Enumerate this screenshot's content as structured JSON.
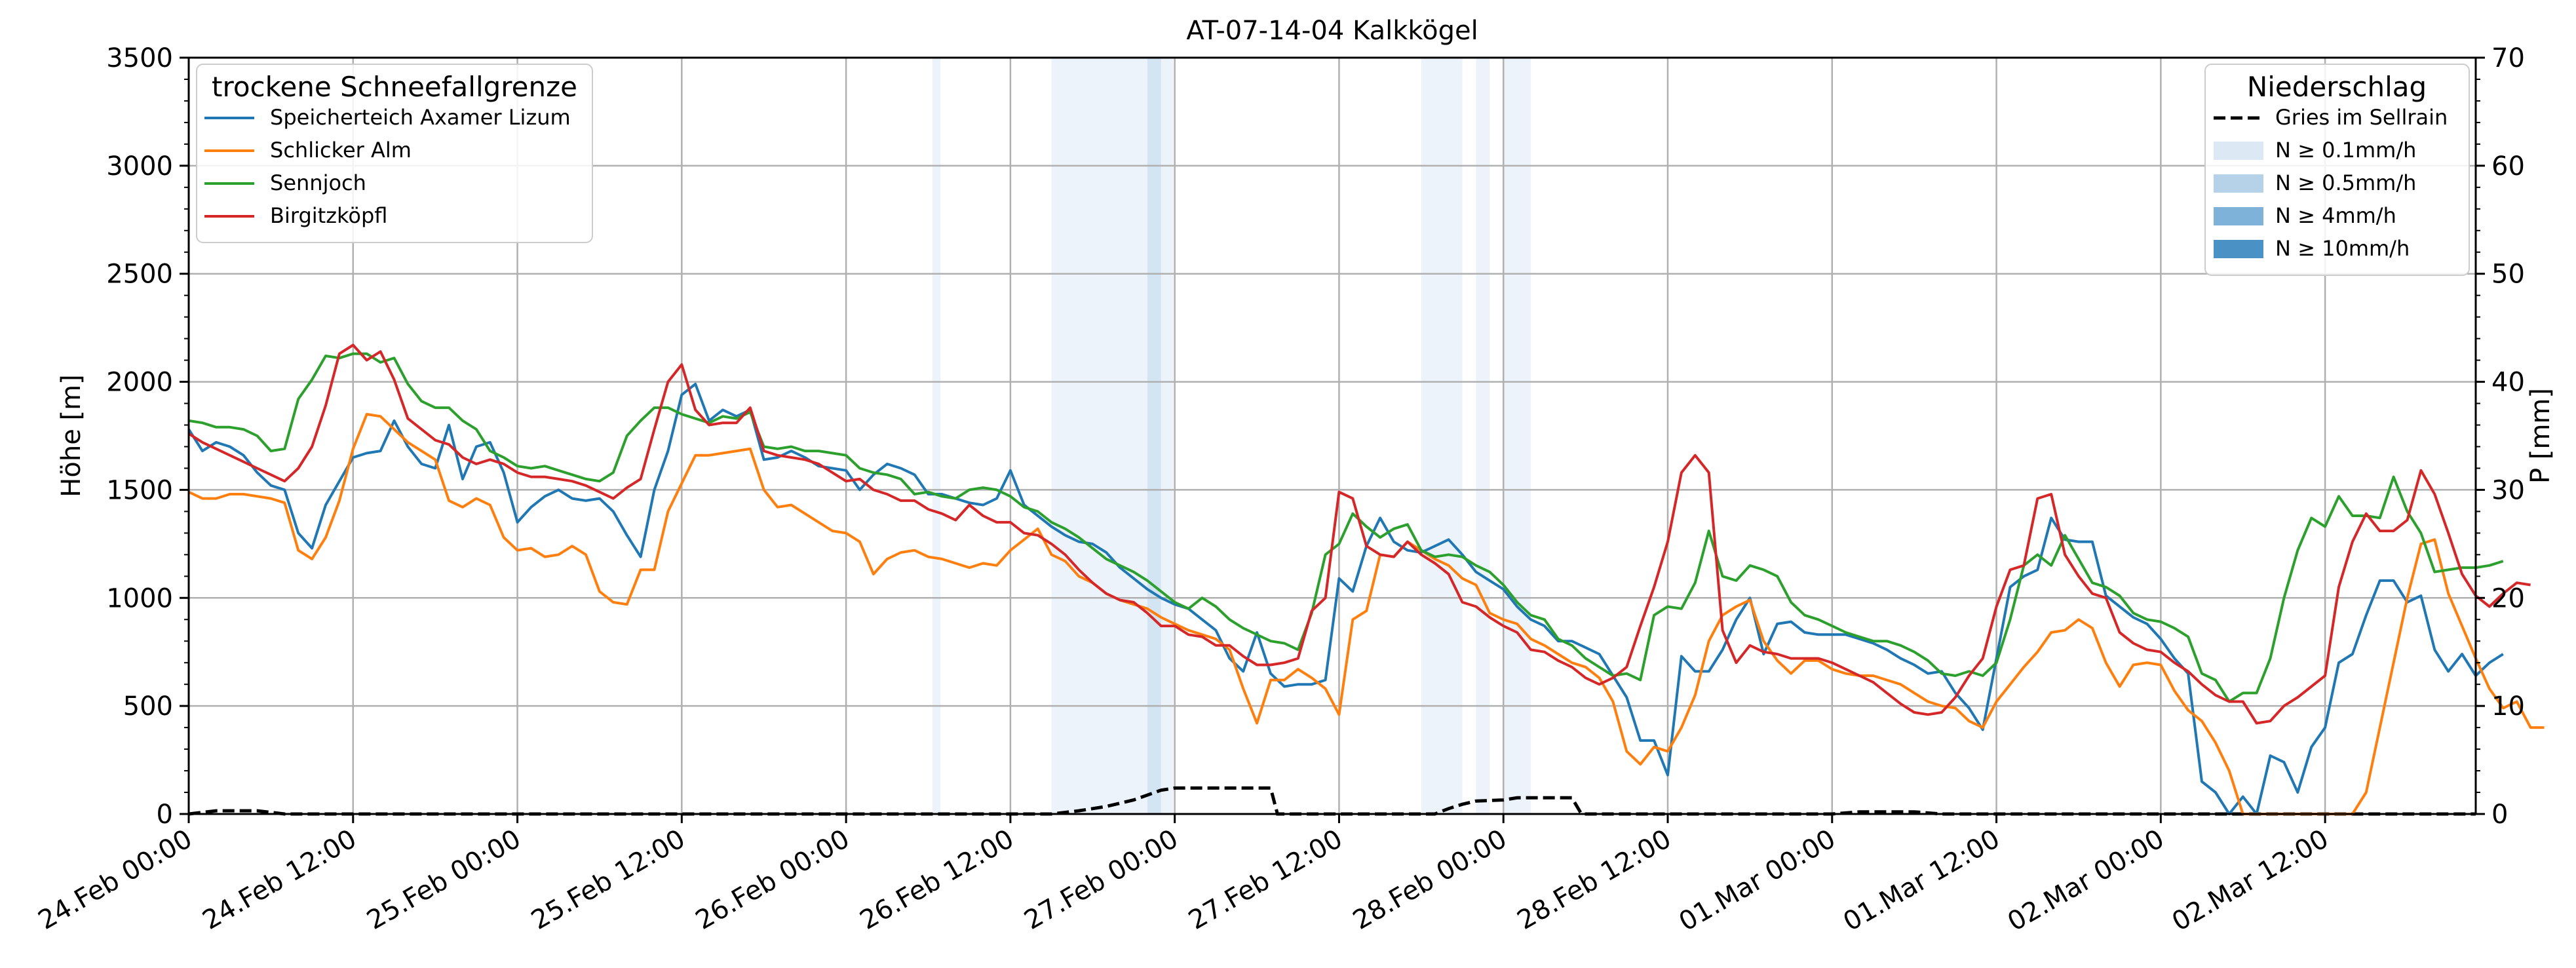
{
  "chart_data": {
    "type": "line",
    "title": "AT-07-14-04 Kalkkögel",
    "ylabel": "Höhe [m]",
    "y2label": "P [mm]",
    "ylim": [
      0,
      3500
    ],
    "y2lim": [
      0,
      70
    ],
    "yticks": [
      0,
      500,
      1000,
      1500,
      2000,
      2500,
      3000,
      3500
    ],
    "y2ticks": [
      0,
      10,
      20,
      30,
      40,
      50,
      60,
      70
    ],
    "xlim": [
      0,
      167
    ],
    "x_unit": "hours",
    "xticks": [
      {
        "x": 0,
        "label": "24.Feb 00:00"
      },
      {
        "x": 12,
        "label": "24.Feb 12:00"
      },
      {
        "x": 24,
        "label": "25.Feb 00:00"
      },
      {
        "x": 36,
        "label": "25.Feb 12:00"
      },
      {
        "x": 48,
        "label": "26.Feb 00:00"
      },
      {
        "x": 60,
        "label": "26.Feb 12:00"
      },
      {
        "x": 72,
        "label": "27.Feb 00:00"
      },
      {
        "x": 84,
        "label": "27.Feb 12:00"
      },
      {
        "x": 96,
        "label": "28.Feb 00:00"
      },
      {
        "x": 108,
        "label": "28.Feb 12:00"
      },
      {
        "x": 120,
        "label": "01.Mar 00:00"
      },
      {
        "x": 132,
        "label": "01.Mar 12:00"
      },
      {
        "x": 144,
        "label": "02.Mar 00:00"
      },
      {
        "x": 156,
        "label": "02.Mar 12:00"
      }
    ],
    "grid": true,
    "legend_left": {
      "title": "trockene Schneefallgrenze",
      "placement": "upper-left"
    },
    "legend_right": {
      "title": "Niederschlag",
      "placement": "upper-right",
      "items": [
        {
          "label": "Gries im Sellrain",
          "style": "dashed",
          "color": "#000000"
        },
        {
          "label": "N ≥ 0.1mm/h",
          "color": "#dce9f5"
        },
        {
          "label": "N ≥ 0.5mm/h",
          "color": "#b6d2e9"
        },
        {
          "label": "N ≥ 4mm/h",
          "color": "#7fb2d9"
        },
        {
          "label": "N ≥ 10mm/h",
          "color": "#4a91c6"
        }
      ]
    },
    "series": [
      {
        "name": "Speicherteich Axamer Lizum",
        "color": "#1f77b4",
        "values": [
          1780,
          1680,
          1720,
          1700,
          1660,
          1580,
          1520,
          1500,
          1300,
          1230,
          1430,
          1540,
          1650,
          1670,
          1680,
          1820,
          1700,
          1620,
          1600,
          1800,
          1550,
          1700,
          1720,
          1580,
          1350,
          1420,
          1470,
          1500,
          1460,
          1450,
          1460,
          1400,
          1290,
          1190,
          1500,
          1680,
          1940,
          1990,
          1820,
          1870,
          1840,
          1870,
          1640,
          1650,
          1680,
          1650,
          1610,
          1600,
          1590,
          1500,
          1570,
          1620,
          1600,
          1570,
          1480,
          1480,
          1460,
          1440,
          1430,
          1460,
          1590,
          1430,
          1380,
          1330,
          1290,
          1260,
          1250,
          1210,
          1140,
          1090,
          1040,
          1000,
          970,
          950,
          900,
          850,
          720,
          660,
          840,
          650,
          590,
          600,
          600,
          620,
          1090,
          1030,
          1240,
          1370,
          1260,
          1220,
          1210,
          1240,
          1270,
          1200,
          1120,
          1080,
          1040,
          960,
          900,
          870,
          800,
          800,
          770,
          740,
          640,
          540,
          340,
          340,
          180,
          730,
          660,
          660,
          760,
          900,
          1000,
          740,
          880,
          890,
          840,
          830,
          830,
          830,
          810,
          790,
          760,
          720,
          690,
          650,
          660,
          560,
          490,
          390,
          720,
          1050,
          1100,
          1130,
          1370,
          1270,
          1260,
          1260,
          1010,
          960,
          910,
          880,
          810,
          720,
          650,
          150,
          100,
          0,
          80,
          0,
          270,
          240,
          100,
          310,
          400,
          700,
          740,
          920,
          1080,
          1080,
          980,
          1010,
          760,
          660,
          740,
          640,
          700,
          740
        ]
      },
      {
        "name": "Schlicker Alm",
        "color": "#ff7f0e",
        "values": [
          1490,
          1460,
          1460,
          1480,
          1480,
          1470,
          1460,
          1440,
          1220,
          1180,
          1280,
          1450,
          1690,
          1850,
          1840,
          1780,
          1720,
          1680,
          1640,
          1450,
          1420,
          1460,
          1430,
          1280,
          1220,
          1230,
          1190,
          1200,
          1240,
          1200,
          1030,
          980,
          970,
          1130,
          1130,
          1400,
          1530,
          1660,
          1660,
          1670,
          1680,
          1690,
          1500,
          1420,
          1430,
          1390,
          1350,
          1310,
          1300,
          1260,
          1110,
          1180,
          1210,
          1220,
          1190,
          1180,
          1160,
          1140,
          1160,
          1150,
          1220,
          1270,
          1320,
          1200,
          1170,
          1100,
          1070,
          1020,
          990,
          970,
          950,
          910,
          880,
          850,
          830,
          810,
          760,
          580,
          420,
          620,
          620,
          670,
          630,
          580,
          460,
          900,
          940,
          1200,
          1190,
          1260,
          1220,
          1180,
          1150,
          1090,
          1060,
          930,
          900,
          880,
          810,
          780,
          740,
          700,
          680,
          630,
          520,
          290,
          230,
          310,
          290,
          400,
          550,
          800,
          920,
          960,
          990,
          800,
          710,
          650,
          710,
          710,
          670,
          650,
          640,
          640,
          620,
          600,
          560,
          520,
          500,
          490,
          430,
          400,
          520,
          600,
          680,
          750,
          840,
          850,
          900,
          860,
          700,
          590,
          690,
          700,
          690,
          570,
          480,
          430,
          330,
          200,
          0,
          0,
          0,
          0,
          0,
          0,
          0,
          0,
          0,
          100,
          400,
          700,
          1000,
          1250,
          1270,
          1020,
          870,
          720,
          580,
          490,
          520,
          400,
          400
        ]
      },
      {
        "name": "Sennjoch",
        "color": "#2ca02c",
        "values": [
          1820,
          1810,
          1790,
          1790,
          1780,
          1750,
          1680,
          1690,
          1920,
          2010,
          2120,
          2110,
          2130,
          2130,
          2090,
          2110,
          1990,
          1910,
          1880,
          1880,
          1820,
          1780,
          1680,
          1650,
          1610,
          1600,
          1610,
          1590,
          1570,
          1550,
          1540,
          1580,
          1750,
          1820,
          1880,
          1880,
          1850,
          1830,
          1810,
          1840,
          1830,
          1860,
          1700,
          1690,
          1700,
          1680,
          1680,
          1670,
          1660,
          1600,
          1580,
          1570,
          1550,
          1480,
          1490,
          1470,
          1460,
          1500,
          1510,
          1500,
          1470,
          1420,
          1400,
          1350,
          1320,
          1280,
          1230,
          1180,
          1150,
          1120,
          1080,
          1030,
          980,
          950,
          1000,
          960,
          900,
          860,
          830,
          800,
          790,
          760,
          930,
          1200,
          1250,
          1390,
          1330,
          1280,
          1320,
          1340,
          1220,
          1190,
          1200,
          1190,
          1150,
          1120,
          1060,
          980,
          920,
          900,
          810,
          780,
          720,
          680,
          640,
          650,
          620,
          920,
          960,
          950,
          1070,
          1310,
          1100,
          1080,
          1150,
          1130,
          1100,
          980,
          920,
          900,
          870,
          840,
          820,
          800,
          800,
          780,
          750,
          710,
          650,
          640,
          660,
          640,
          700,
          900,
          1150,
          1200,
          1150,
          1290,
          1180,
          1070,
          1050,
          1010,
          930,
          900,
          890,
          860,
          820,
          650,
          620,
          520,
          560,
          560,
          720,
          1000,
          1220,
          1370,
          1330,
          1470,
          1380,
          1380,
          1370,
          1560,
          1400,
          1300,
          1120,
          1130,
          1140,
          1140,
          1150,
          1170
        ]
      },
      {
        "name": "Birgitzköpfl",
        "color": "#d62728",
        "values": [
          1760,
          1720,
          1690,
          1660,
          1630,
          1600,
          1570,
          1540,
          1600,
          1700,
          1890,
          2130,
          2170,
          2100,
          2140,
          2010,
          1830,
          1780,
          1730,
          1710,
          1650,
          1620,
          1640,
          1620,
          1580,
          1560,
          1560,
          1550,
          1540,
          1520,
          1490,
          1460,
          1510,
          1550,
          1780,
          2000,
          2080,
          1870,
          1800,
          1810,
          1810,
          1880,
          1680,
          1660,
          1650,
          1640,
          1620,
          1580,
          1540,
          1550,
          1500,
          1480,
          1450,
          1450,
          1410,
          1390,
          1360,
          1430,
          1380,
          1350,
          1350,
          1300,
          1290,
          1250,
          1200,
          1130,
          1070,
          1020,
          990,
          980,
          930,
          870,
          870,
          830,
          820,
          780,
          780,
          730,
          690,
          690,
          700,
          720,
          940,
          1000,
          1490,
          1460,
          1240,
          1200,
          1190,
          1260,
          1200,
          1160,
          1110,
          980,
          960,
          910,
          870,
          840,
          760,
          750,
          710,
          680,
          630,
          600,
          630,
          680,
          870,
          1050,
          1260,
          1580,
          1660,
          1580,
          850,
          700,
          780,
          750,
          740,
          720,
          720,
          720,
          700,
          670,
          640,
          610,
          560,
          510,
          470,
          460,
          470,
          540,
          640,
          720,
          960,
          1130,
          1150,
          1460,
          1480,
          1200,
          1100,
          1020,
          1000,
          840,
          790,
          760,
          750,
          700,
          660,
          600,
          550,
          520,
          520,
          420,
          430,
          500,
          540,
          590,
          640,
          1050,
          1260,
          1390,
          1310,
          1310,
          1360,
          1590,
          1480,
          1300,
          1110,
          1010,
          960,
          1020,
          1070,
          1060
        ]
      }
    ],
    "precip_station": {
      "name": "Gries im Sellrain",
      "points": [
        [
          0,
          0
        ],
        [
          2,
          0.3
        ],
        [
          5,
          0.3
        ],
        [
          7,
          0
        ],
        [
          44,
          0
        ],
        [
          62,
          0
        ],
        [
          63,
          0
        ],
        [
          65,
          0.3
        ],
        [
          67,
          0.7
        ],
        [
          69,
          1.3
        ],
        [
          71,
          2.2
        ],
        [
          72,
          2.4
        ],
        [
          79,
          2.4
        ],
        [
          79.5,
          0
        ],
        [
          91,
          0
        ],
        [
          92,
          0.5
        ],
        [
          93,
          0.9
        ],
        [
          94,
          1.2
        ],
        [
          96,
          1.3
        ],
        [
          97,
          1.5
        ],
        [
          98,
          1.5
        ],
        [
          101,
          1.5
        ],
        [
          101.7,
          0
        ],
        [
          120,
          0
        ],
        [
          122,
          0.2
        ],
        [
          126,
          0.2
        ],
        [
          128,
          0
        ],
        [
          167,
          0
        ]
      ]
    },
    "precip_bands": [
      {
        "x0": 54.3,
        "x1": 54.9,
        "level": 1
      },
      {
        "x0": 63.0,
        "x1": 66.0,
        "level": 1
      },
      {
        "x0": 66.0,
        "x1": 70.0,
        "level": 1
      },
      {
        "x0": 70.0,
        "x1": 71.0,
        "level": 2
      },
      {
        "x0": 71.0,
        "x1": 71.9,
        "level": 1
      },
      {
        "x0": 90.0,
        "x1": 93.0,
        "level": 1
      },
      {
        "x0": 94.0,
        "x1": 95.0,
        "level": 1
      },
      {
        "x0": 96.0,
        "x1": 98.0,
        "level": 1
      }
    ]
  }
}
